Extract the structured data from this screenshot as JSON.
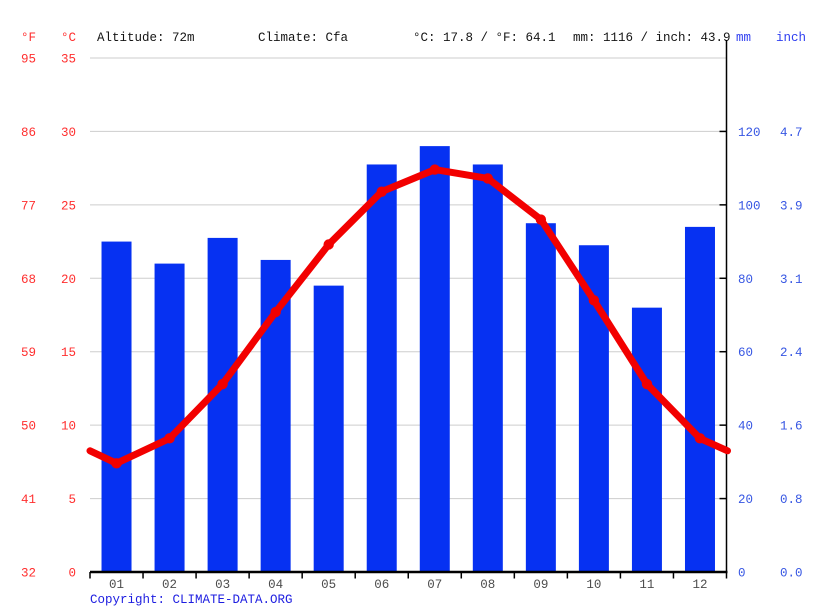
{
  "header": {
    "f_label": "°F",
    "c_label": "°C",
    "altitude": "Altitude: 72m",
    "climate": "Climate: Cfa",
    "temp_summary": "°C: 17.8 / °F: 64.1",
    "precip_summary": "mm: 1116 / inch: 43.9",
    "mm_label": "mm",
    "inch_label": "inch"
  },
  "footer": {
    "copyright_prefix": "Copyright: ",
    "copyright_link": "CLIMATE-DATA.ORG"
  },
  "colors": {
    "bar_blue": "#0631f2",
    "line_red": "#f20000",
    "red_axis_text": "#ff2e2e",
    "blue_axis_text": "#3656e3",
    "blue_header_text": "#2e3ef0",
    "link_blue": "#1d1de0",
    "grid_gray": "#cdcdcd",
    "month_text": "#4d4d4d",
    "header_text": "#141414",
    "axis_black": "#000000",
    "background": "#ffffff"
  },
  "chart_data": {
    "type": "bar",
    "subtype": "climate-combo-bar-and-line",
    "categories": [
      "01",
      "02",
      "03",
      "04",
      "05",
      "06",
      "07",
      "08",
      "09",
      "10",
      "11",
      "12"
    ],
    "series": [
      {
        "name": "precipitation_mm",
        "type": "bar",
        "values": [
          90,
          84,
          91,
          85,
          78,
          111,
          116,
          111,
          95,
          89,
          72,
          94
        ]
      },
      {
        "name": "temperature_c",
        "type": "line",
        "values": [
          7.4,
          9.1,
          12.8,
          17.7,
          22.3,
          25.9,
          27.4,
          26.8,
          24.0,
          18.5,
          12.8,
          9.1
        ]
      }
    ],
    "left_axis": {
      "f_ticks": [
        "95",
        "86",
        "77",
        "68",
        "59",
        "50",
        "41",
        "32"
      ],
      "c_ticks": [
        "35",
        "30",
        "25",
        "20",
        "15",
        "10",
        "5",
        "0"
      ]
    },
    "right_axis": {
      "mm_ticks": [
        "120",
        "100",
        "80",
        "60",
        "40",
        "20",
        "0"
      ],
      "inch_ticks": [
        "4.7",
        "3.9",
        "3.1",
        "2.4",
        "1.6",
        "0.8",
        "0.0"
      ]
    },
    "temp_axis_range_c": [
      0,
      35
    ],
    "precip_axis_range_mm": [
      0,
      140
    ],
    "grid": true,
    "legend_position": "none",
    "title": ""
  }
}
